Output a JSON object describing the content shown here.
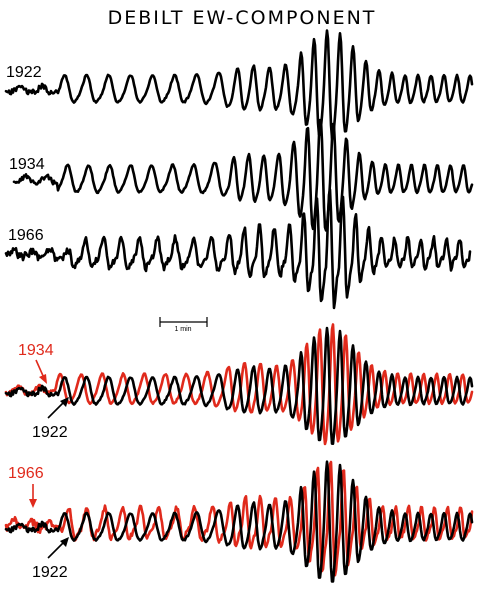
{
  "title": "DEBILT EW-COMPONENT",
  "colors": {
    "black": "#000000",
    "red": "#e02a1c"
  },
  "single_traces": [
    {
      "year": "1922"
    },
    {
      "year": "1934"
    },
    {
      "year": "1966"
    }
  ],
  "scale_bar": {
    "label": "1 min"
  },
  "overlays": [
    {
      "red_year": "1934",
      "black_year": "1922"
    },
    {
      "red_year": "1966",
      "black_year": "1922"
    }
  ]
}
